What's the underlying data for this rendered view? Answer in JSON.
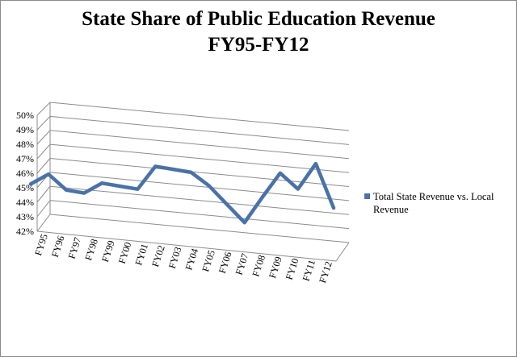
{
  "chart_data": {
    "type": "line",
    "title_line1": "State Share of Public Education Revenue",
    "title_line2": "FY95-FY12",
    "xlabel": "",
    "ylabel": "",
    "ylim": [
      42,
      50
    ],
    "y_ticks": [
      "42%",
      "43%",
      "44%",
      "45%",
      "46%",
      "47%",
      "48%",
      "49%",
      "50%"
    ],
    "categories": [
      "FY95",
      "FY96",
      "FY97",
      "FY98",
      "FY99",
      "FY00",
      "FY01",
      "FY02",
      "FY03",
      "FY04",
      "FY05",
      "FY06",
      "FY07",
      "FY08",
      "FY09",
      "FY10",
      "FY11",
      "FY12"
    ],
    "series": [
      {
        "name": "Total State Revenue vs. Local Revenue",
        "color": "#4a72a8",
        "values": [
          45.1,
          46.0,
          44.9,
          44.8,
          45.7,
          45.6,
          45.5,
          47.4,
          47.3,
          47.2,
          46.3,
          45.0,
          43.7,
          45.8,
          47.8,
          46.7,
          48.8,
          45.5
        ]
      }
    ],
    "grid": true,
    "legend_position": "right"
  }
}
